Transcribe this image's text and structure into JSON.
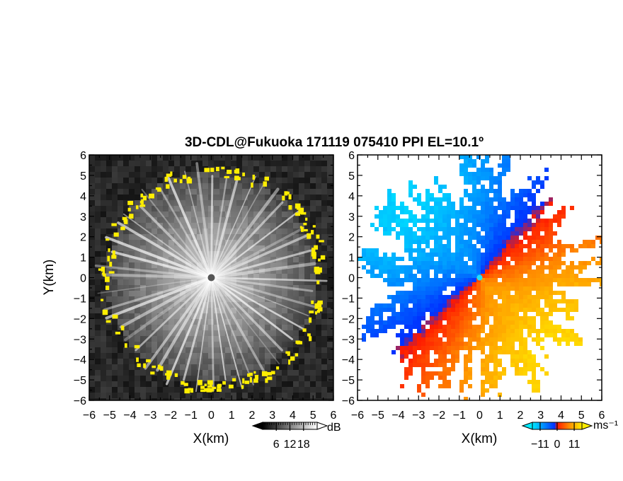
{
  "chart_data": {
    "type": "heatmap",
    "title": "3D-CDL@Fukuoka 171119 075410 PPI EL=10.1º",
    "panels": [
      {
        "quantity": "SNR",
        "xlabel": "X(km)",
        "ylabel": "Y(km)",
        "xlim": [
          -6,
          6
        ],
        "ylim": [
          -6,
          6
        ],
        "xticks": [
          "−6",
          "−5",
          "−4",
          "−3",
          "−2",
          "−1",
          "0",
          "1",
          "2",
          "3",
          "4",
          "5",
          "6"
        ],
        "yticks": [
          "6",
          "5",
          "4",
          "3",
          "2",
          "1",
          "0",
          "−1",
          "−2",
          "−3",
          "−4",
          "−5",
          "−6"
        ],
        "colorbar": {
          "unit": "dB",
          "range": [
            0,
            24
          ],
          "tick_values": [
            6,
            12,
            18
          ],
          "tick_labels": [
            "6",
            "12",
            "18"
          ],
          "colors": [
            "#000000",
            "#ffffff"
          ]
        },
        "features": {
          "echo_radius_km": 5.2,
          "clutter_color": "#ffee00",
          "background_color": "#262626"
        }
      },
      {
        "quantity": "Doppler velocity",
        "xlabel": "X(km)",
        "ylabel": "",
        "xlim": [
          -6,
          6
        ],
        "ylim": [
          -6,
          6
        ],
        "xticks": [
          "−6",
          "−5",
          "−4",
          "−3",
          "−2",
          "−1",
          "0",
          "1",
          "2",
          "3",
          "4",
          "5",
          "6"
        ],
        "yticks": [
          "6",
          "5",
          "4",
          "3",
          "2",
          "1",
          "0",
          "−1",
          "−2",
          "−3",
          "−4",
          "−5",
          "−6"
        ],
        "colorbar": {
          "unit": "ms⁻¹",
          "range": [
            -16,
            16
          ],
          "tick_values": [
            -11,
            0,
            11
          ],
          "tick_labels": [
            "−11",
            "0",
            "11"
          ],
          "colors": [
            "#00eaff",
            "#0030ff",
            "#ff1a00",
            "#ff9000",
            "#ffee00"
          ]
        },
        "features": {
          "flow_direction_deg": 135,
          "max_speed": 14
        }
      }
    ]
  }
}
